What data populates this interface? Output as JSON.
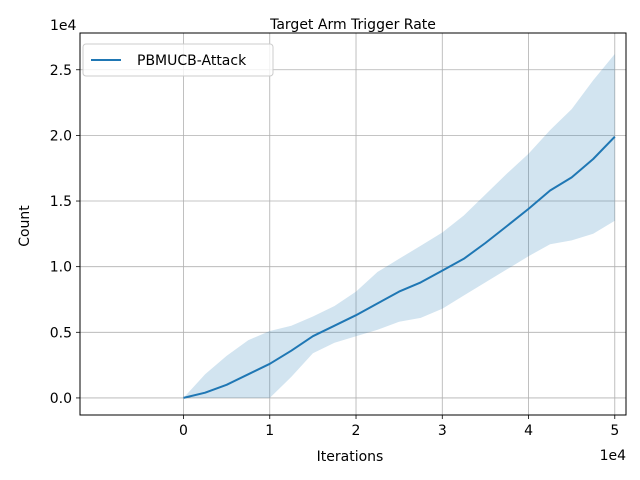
{
  "chart_data": {
    "type": "line",
    "title": "Target Arm Trigger Rate",
    "xlabel": "Iterations",
    "ylabel": "Count",
    "x_offset_text": "1e4",
    "y_offset_text": "1e4",
    "xlim": [
      -1.2,
      5.13
    ],
    "ylim": [
      -0.13,
      2.78
    ],
    "x_ticks": [
      0,
      1,
      2,
      3,
      4,
      5
    ],
    "x_tick_labels": [
      "0",
      "1",
      "2",
      "3",
      "4",
      "5"
    ],
    "y_ticks": [
      0,
      0.5,
      1.0,
      1.5,
      2.0,
      2.5
    ],
    "y_tick_labels": [
      "0.0",
      "0.5",
      "1.0",
      "1.5",
      "2.0",
      "2.5"
    ],
    "grid": true,
    "legend_position": "top-left",
    "series": [
      {
        "name": "PBMUCB-Attack",
        "color": "#1f77b4",
        "band_color": "#1f77b4",
        "band_opacity": 0.2,
        "x": [
          0,
          0.25,
          0.5,
          0.75,
          1.0,
          1.25,
          1.5,
          1.75,
          2.0,
          2.25,
          2.5,
          2.75,
          3.0,
          3.25,
          3.5,
          3.75,
          4.0,
          4.25,
          4.5,
          4.75,
          5.0
        ],
        "mean": [
          0,
          0.04,
          0.1,
          0.18,
          0.26,
          0.36,
          0.47,
          0.55,
          0.63,
          0.72,
          0.81,
          0.88,
          0.97,
          1.06,
          1.18,
          1.31,
          1.44,
          1.58,
          1.68,
          1.82,
          1.99
        ],
        "lower": [
          0,
          0.0,
          0.0,
          0.0,
          0.0,
          0.16,
          0.34,
          0.42,
          0.47,
          0.52,
          0.58,
          0.61,
          0.68,
          0.78,
          0.88,
          0.98,
          1.08,
          1.17,
          1.2,
          1.25,
          1.35
        ],
        "upper": [
          0,
          0.18,
          0.32,
          0.44,
          0.51,
          0.55,
          0.62,
          0.7,
          0.81,
          0.96,
          1.06,
          1.16,
          1.26,
          1.39,
          1.55,
          1.71,
          1.86,
          2.04,
          2.2,
          2.42,
          2.62
        ]
      }
    ]
  }
}
